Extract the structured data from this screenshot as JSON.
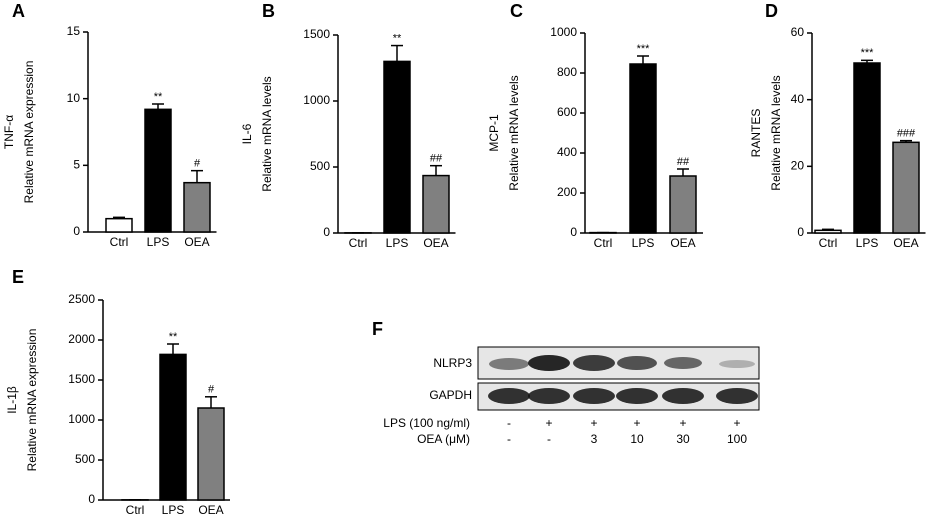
{
  "chart_data": [
    {
      "type": "bar",
      "panel": "A",
      "ylabel": [
        "TNF-α",
        "Relative mRNA expression"
      ],
      "categories": [
        "Ctrl",
        "LPS",
        "OEA"
      ],
      "values": [
        1.0,
        9.2,
        3.7
      ],
      "errors": [
        0.1,
        0.4,
        0.9
      ],
      "annotations": [
        null,
        "**",
        "#"
      ],
      "colors": [
        "#ffffff",
        "#000000",
        "#808080"
      ],
      "ylim": [
        0,
        15
      ],
      "yticks": [
        0,
        5,
        10,
        15
      ]
    },
    {
      "type": "bar",
      "panel": "B",
      "ylabel": [
        "IL-6",
        "Relative mRNA levels"
      ],
      "categories": [
        "Ctrl",
        "LPS",
        "OEA"
      ],
      "values": [
        1,
        1300,
        435
      ],
      "errors": [
        0,
        120,
        75
      ],
      "annotations": [
        null,
        "**",
        "##"
      ],
      "colors": [
        "#ffffff",
        "#000000",
        "#808080"
      ],
      "ylim": [
        0,
        1500
      ],
      "yticks": [
        0,
        500,
        1000,
        1500
      ]
    },
    {
      "type": "bar",
      "panel": "C",
      "ylabel": [
        "MCP-1",
        "Relative mRNA levels"
      ],
      "categories": [
        "Ctrl",
        "LPS",
        "OEA"
      ],
      "values": [
        2,
        845,
        285
      ],
      "errors": [
        0,
        40,
        35
      ],
      "annotations": [
        null,
        "***",
        "##"
      ],
      "colors": [
        "#ffffff",
        "#000000",
        "#808080"
      ],
      "ylim": [
        0,
        1000
      ],
      "yticks": [
        0,
        200,
        400,
        600,
        800,
        1000
      ]
    },
    {
      "type": "bar",
      "panel": "D",
      "ylabel": [
        "RANTES",
        "Relative mRNA levels"
      ],
      "categories": [
        "Ctrl",
        "LPS",
        "OEA"
      ],
      "values": [
        0.8,
        51,
        27.2
      ],
      "errors": [
        0.3,
        0.8,
        0.5
      ],
      "annotations": [
        null,
        "***",
        "###"
      ],
      "colors": [
        "#ffffff",
        "#000000",
        "#808080"
      ],
      "ylim": [
        0,
        60
      ],
      "yticks": [
        0,
        20,
        40,
        60
      ]
    },
    {
      "type": "bar",
      "panel": "E",
      "ylabel": [
        "IL-1β",
        "Relative mRNA expression"
      ],
      "categories": [
        "Ctrl",
        "LPS",
        "OEA"
      ],
      "values": [
        2,
        1820,
        1150
      ],
      "errors": [
        0,
        130,
        140
      ],
      "annotations": [
        null,
        "**",
        "#"
      ],
      "colors": [
        "#ffffff",
        "#000000",
        "#808080"
      ],
      "ylim": [
        0,
        2500
      ],
      "yticks": [
        0,
        500,
        1000,
        1500,
        2000,
        2500
      ]
    }
  ],
  "blot": {
    "panel": "F",
    "rows": [
      "NLRP3",
      "GAPDH"
    ],
    "treatments": [
      {
        "label": "LPS (100 ng/ml)",
        "lanes": [
          "-",
          "+",
          "+",
          "+",
          "+",
          "+"
        ]
      },
      {
        "label": "OEA  (μM)",
        "lanes": [
          "-",
          "-",
          "3",
          "10",
          "30",
          "100"
        ]
      }
    ]
  }
}
